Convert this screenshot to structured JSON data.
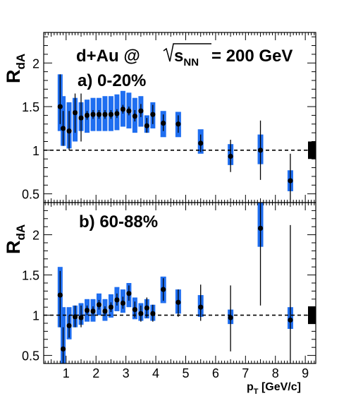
{
  "chart_data": {
    "type": "scatter",
    "title": "d+Au @ √sNN = 200 GeV",
    "title_parts": {
      "prefix": "d+Au @ ",
      "radical": "s",
      "radical_sub": "NN",
      "suffix": " = 200 GeV"
    },
    "xlabel": "pT [GeV/c]",
    "xlabel_parts": {
      "main": "p",
      "sub": "T",
      "unit": " [GeV/c]"
    },
    "xlim": [
      0.25,
      9.35
    ],
    "x_ticks": [
      1,
      2,
      3,
      4,
      5,
      6,
      7,
      8,
      9
    ],
    "reference_line": 1,
    "panels": [
      {
        "label": "a) 0-20%",
        "ylabel": "R",
        "ylabel_sub": "dA",
        "ylim": [
          0.4,
          2.35
        ],
        "y_ticks": [
          0.5,
          1,
          1.5,
          2
        ],
        "y_tick_labels": [
          "0.5",
          "1",
          "1.5",
          "2"
        ],
        "norm_uncertainty": [
          0.9,
          1.1
        ],
        "points": [
          {
            "x": 0.8,
            "y": 1.5,
            "stat": [
              1.3,
              1.87
            ],
            "sys": [
              1.22,
              1.87
            ]
          },
          {
            "x": 0.9,
            "y": 1.25,
            "stat": [
              1.05,
              1.45
            ],
            "sys": [
              1.05,
              1.62
            ]
          },
          {
            "x": 1.1,
            "y": 1.22,
            "stat": [
              1.0,
              1.45
            ],
            "sys": [
              1.02,
              1.55
            ]
          },
          {
            "x": 1.3,
            "y": 1.43,
            "stat": [
              1.2,
              1.65
            ],
            "sys": [
              1.1,
              1.6
            ]
          },
          {
            "x": 1.5,
            "y": 1.37,
            "stat": [
              1.1,
              1.65
            ],
            "sys": [
              1.22,
              1.55
            ]
          },
          {
            "x": 1.7,
            "y": 1.4,
            "stat": [
              1.35,
              1.45
            ],
            "sys": [
              1.2,
              1.58
            ]
          },
          {
            "x": 1.9,
            "y": 1.41,
            "stat": [
              1.36,
              1.46
            ],
            "sys": [
              1.22,
              1.6
            ]
          },
          {
            "x": 2.1,
            "y": 1.41,
            "stat": [
              1.36,
              1.46
            ],
            "sys": [
              1.22,
              1.6
            ]
          },
          {
            "x": 2.3,
            "y": 1.41,
            "stat": [
              1.36,
              1.46
            ],
            "sys": [
              1.22,
              1.62
            ]
          },
          {
            "x": 2.5,
            "y": 1.41,
            "stat": [
              1.36,
              1.46
            ],
            "sys": [
              1.22,
              1.62
            ]
          },
          {
            "x": 2.7,
            "y": 1.42,
            "stat": [
              1.37,
              1.47
            ],
            "sys": [
              1.23,
              1.64
            ]
          },
          {
            "x": 2.9,
            "y": 1.47,
            "stat": [
              1.42,
              1.52
            ],
            "sys": [
              1.27,
              1.68
            ]
          },
          {
            "x": 3.1,
            "y": 1.45,
            "stat": [
              1.4,
              1.5
            ],
            "sys": [
              1.25,
              1.66
            ]
          },
          {
            "x": 3.3,
            "y": 1.39,
            "stat": [
              1.33,
              1.46
            ],
            "sys": [
              1.2,
              1.6
            ]
          },
          {
            "x": 3.5,
            "y": 1.45,
            "stat": [
              1.38,
              1.53
            ],
            "sys": [
              1.27,
              1.62
            ]
          },
          {
            "x": 3.7,
            "y": 1.28,
            "stat": [
              1.2,
              1.37
            ],
            "sys": [
              1.2,
              1.4
            ]
          },
          {
            "x": 3.9,
            "y": 1.41,
            "stat": [
              1.3,
              1.52
            ],
            "sys": [
              1.25,
              1.55
            ]
          },
          {
            "x": 4.25,
            "y": 1.31,
            "stat": [
              1.22,
              1.41
            ],
            "sys": [
              1.15,
              1.45
            ]
          },
          {
            "x": 4.75,
            "y": 1.3,
            "stat": [
              1.2,
              1.4
            ],
            "sys": [
              1.15,
              1.44
            ]
          },
          {
            "x": 5.5,
            "y": 1.08,
            "stat": [
              0.98,
              1.18
            ],
            "sys": [
              0.96,
              1.24
            ]
          },
          {
            "x": 6.5,
            "y": 0.93,
            "stat": [
              0.75,
              1.12
            ],
            "sys": [
              0.83,
              1.07
            ]
          },
          {
            "x": 7.5,
            "y": 1.0,
            "stat": [
              0.66,
              1.34
            ],
            "sys": [
              0.84,
              1.18
            ]
          },
          {
            "x": 8.5,
            "y": 0.65,
            "stat": [
              0.35,
              0.96
            ],
            "sys": [
              0.53,
              0.77
            ]
          }
        ]
      },
      {
        "label": "b) 60-88%",
        "ylabel": "R",
        "ylabel_sub": "dA",
        "ylim": [
          0.4,
          2.4
        ],
        "y_ticks": [
          0.5,
          1,
          1.5,
          2
        ],
        "y_tick_labels": [
          "0.5",
          "1",
          "1.5",
          "2"
        ],
        "norm_uncertainty": [
          0.89,
          1.11
        ],
        "points": [
          {
            "x": 0.8,
            "y": 1.25,
            "stat": [
              0.85,
              1.55
            ],
            "sys": [
              0.85,
              1.6
            ]
          },
          {
            "x": 0.9,
            "y": 0.58,
            "stat": [
              0.4,
              0.85
            ],
            "sys": [
              0.4,
              1.1
            ]
          },
          {
            "x": 1.1,
            "y": 0.87,
            "stat": [
              0.72,
              1.0
            ],
            "sys": [
              0.7,
              1.1
            ]
          },
          {
            "x": 1.3,
            "y": 0.98,
            "stat": [
              0.85,
              1.12
            ],
            "sys": [
              0.85,
              1.12
            ]
          },
          {
            "x": 1.5,
            "y": 0.97,
            "stat": [
              0.85,
              1.12
            ],
            "sys": [
              0.88,
              1.15
            ]
          },
          {
            "x": 1.7,
            "y": 1.06,
            "stat": [
              1.0,
              1.12
            ],
            "sys": [
              0.92,
              1.2
            ]
          },
          {
            "x": 1.9,
            "y": 1.05,
            "stat": [
              0.99,
              1.11
            ],
            "sys": [
              0.92,
              1.2
            ]
          },
          {
            "x": 2.1,
            "y": 1.13,
            "stat": [
              1.07,
              1.19
            ],
            "sys": [
              1.0,
              1.27
            ]
          },
          {
            "x": 2.3,
            "y": 1.05,
            "stat": [
              0.99,
              1.11
            ],
            "sys": [
              0.93,
              1.2
            ]
          },
          {
            "x": 2.5,
            "y": 1.1,
            "stat": [
              1.04,
              1.16
            ],
            "sys": [
              0.97,
              1.26
            ]
          },
          {
            "x": 2.7,
            "y": 1.19,
            "stat": [
              1.12,
              1.27
            ],
            "sys": [
              1.05,
              1.35
            ]
          },
          {
            "x": 2.9,
            "y": 1.15,
            "stat": [
              1.08,
              1.23
            ],
            "sys": [
              1.03,
              1.32
            ]
          },
          {
            "x": 3.1,
            "y": 1.27,
            "stat": [
              1.18,
              1.37
            ],
            "sys": [
              1.1,
              1.4
            ]
          },
          {
            "x": 3.3,
            "y": 1.07,
            "stat": [
              0.97,
              1.17
            ],
            "sys": [
              0.95,
              1.22
            ]
          },
          {
            "x": 3.5,
            "y": 1.02,
            "stat": [
              0.92,
              1.12
            ],
            "sys": [
              0.93,
              1.15
            ]
          },
          {
            "x": 3.7,
            "y": 1.09,
            "stat": [
              0.97,
              1.22
            ],
            "sys": [
              0.96,
              1.2
            ]
          },
          {
            "x": 3.9,
            "y": 1.02,
            "stat": [
              0.92,
              1.13
            ],
            "sys": [
              0.93,
              1.13
            ]
          },
          {
            "x": 4.25,
            "y": 1.32,
            "stat": [
              1.18,
              1.46
            ],
            "sys": [
              1.15,
              1.48
            ]
          },
          {
            "x": 4.75,
            "y": 1.16,
            "stat": [
              0.98,
              1.32
            ],
            "sys": [
              1.02,
              1.32
            ]
          },
          {
            "x": 5.5,
            "y": 1.1,
            "stat": [
              0.93,
              1.38
            ],
            "sys": [
              0.98,
              1.25
            ]
          },
          {
            "x": 6.5,
            "y": 0.97,
            "stat": [
              0.55,
              1.37
            ],
            "sys": [
              0.89,
              1.07
            ]
          },
          {
            "x": 7.5,
            "y": 2.08,
            "stat": [
              1.12,
              2.4
            ],
            "sys": [
              1.85,
              2.4
            ]
          },
          {
            "x": 8.5,
            "y": 0.94,
            "stat": [
              0.4,
              2.12
            ],
            "sys": [
              0.83,
              1.1
            ]
          }
        ]
      }
    ],
    "colors": {
      "sys_band": "#1f6ef0",
      "marker": "#000000",
      "norm_box": "#000000",
      "reference": "#000000"
    }
  }
}
